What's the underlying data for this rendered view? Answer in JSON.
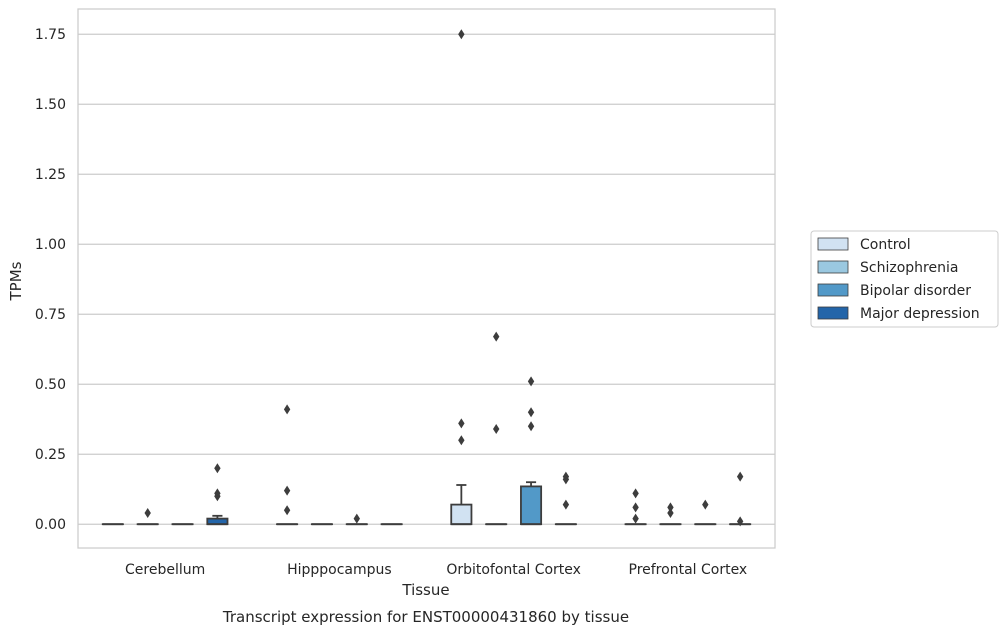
{
  "chart_data": {
    "type": "box",
    "caption": "Transcript expression for ENST00000431860 by tissue",
    "xlabel": "Tissue",
    "ylabel": "TPMs",
    "ylim": [
      -0.085,
      1.84
    ],
    "yticks": [
      "0.00",
      "0.25",
      "0.50",
      "0.75",
      "1.00",
      "1.25",
      "1.50",
      "1.75"
    ],
    "categories": [
      "Cerebellum",
      "Hipppocampus",
      "Orbitofontal Cortex",
      "Prefrontal Cortex"
    ],
    "grid": true,
    "legend_position": "right",
    "series": [
      {
        "name": "Control",
        "color": "#d1e2f2",
        "boxes": [
          {
            "q1": 0,
            "median": 0,
            "q3": 0,
            "whisker_high": 0,
            "outliers": []
          },
          {
            "q1": 0,
            "median": 0,
            "q3": 0,
            "whisker_high": 0,
            "outliers": [
              0.41,
              0.12,
              0.05
            ]
          },
          {
            "q1": 0,
            "median": 0,
            "q3": 0.07,
            "whisker_high": 0.14,
            "outliers": [
              1.75,
              0.36,
              0.3
            ]
          },
          {
            "q1": 0,
            "median": 0,
            "q3": 0,
            "whisker_high": 0,
            "outliers": [
              0.11,
              0.06,
              0.02
            ]
          }
        ]
      },
      {
        "name": "Schizophrenia",
        "color": "#9ac8e0",
        "boxes": [
          {
            "q1": 0,
            "median": 0,
            "q3": 0,
            "whisker_high": 0,
            "outliers": [
              0.04
            ]
          },
          {
            "q1": 0,
            "median": 0,
            "q3": 0,
            "whisker_high": 0,
            "outliers": []
          },
          {
            "q1": 0,
            "median": 0,
            "q3": 0,
            "whisker_high": 0,
            "outliers": [
              0.34,
              0.67
            ]
          },
          {
            "q1": 0,
            "median": 0,
            "q3": 0,
            "whisker_high": 0,
            "outliers": [
              0.06,
              0.04
            ]
          }
        ]
      },
      {
        "name": "Bipolar disorder",
        "color": "#5299c8",
        "boxes": [
          {
            "q1": 0,
            "median": 0,
            "q3": 0,
            "whisker_high": 0,
            "outliers": []
          },
          {
            "q1": 0,
            "median": 0,
            "q3": 0,
            "whisker_high": 0,
            "outliers": [
              0.02
            ]
          },
          {
            "q1": 0,
            "median": 0,
            "q3": 0.135,
            "whisker_high": 0.15,
            "outliers": [
              0.51,
              0.4,
              0.35
            ]
          },
          {
            "q1": 0,
            "median": 0,
            "q3": 0,
            "whisker_high": 0,
            "outliers": [
              0.07
            ]
          }
        ]
      },
      {
        "name": "Major depression",
        "color": "#2365a9",
        "boxes": [
          {
            "q1": 0,
            "median": 0,
            "q3": 0.02,
            "whisker_high": 0.03,
            "outliers": [
              0.2,
              0.11,
              0.1
            ]
          },
          {
            "q1": 0,
            "median": 0,
            "q3": 0,
            "whisker_high": 0,
            "outliers": []
          },
          {
            "q1": 0,
            "median": 0,
            "q3": 0,
            "whisker_high": 0,
            "outliers": [
              0.17,
              0.16,
              0.07
            ]
          },
          {
            "q1": 0,
            "median": 0,
            "q3": 0,
            "whisker_high": 0,
            "outliers": [
              0.17,
              0.01
            ]
          }
        ]
      }
    ]
  }
}
